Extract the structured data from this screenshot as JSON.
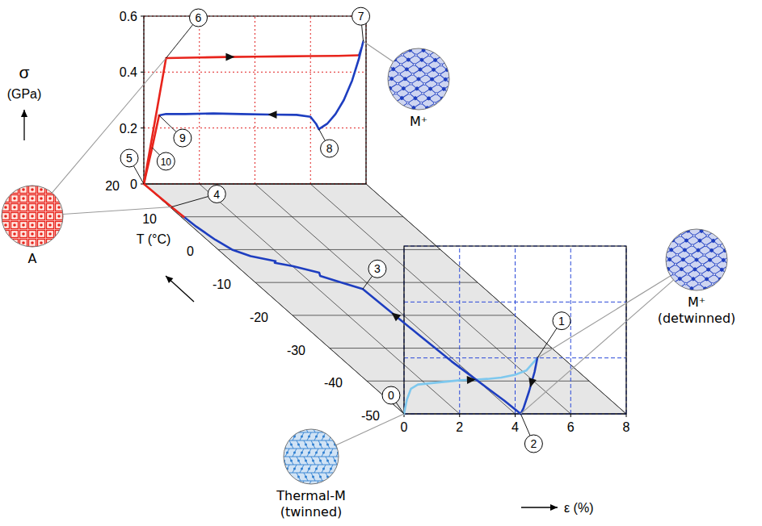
{
  "chart_data": {
    "type": "line3d",
    "xlabel": "ε (%)",
    "ylabel": [
      "σ",
      "(GPa)"
    ],
    "zlabel": "T (°C)",
    "xlim": [
      0,
      8
    ],
    "xticks": [
      0,
      2,
      4,
      6,
      8
    ],
    "ylim": [
      0,
      0.6
    ],
    "yticks": [
      0,
      0.2,
      0.4,
      0.6
    ],
    "zlim": [
      -50,
      20
    ],
    "zticks": [
      20,
      10,
      0,
      -10,
      -20,
      -30,
      -40,
      -50
    ],
    "grid": true,
    "series": [
      {
        "type": "line",
        "color": "#7ec8ee",
        "x": [
          0,
          0.1,
          0.25,
          0.5,
          1,
          1.5,
          2,
          2.5,
          3,
          3.5,
          4,
          4.4,
          4.8
        ],
        "values": [
          0,
          0.05,
          0.09,
          0.105,
          0.11,
          0.115,
          0.12,
          0.122,
          0.125,
          0.13,
          0.14,
          0.155,
          0.2
        ],
        "z": [
          -50,
          -50,
          -50,
          -50,
          -50,
          -50,
          -50,
          -50,
          -50,
          -50,
          -50,
          -50,
          -50
        ]
      },
      {
        "type": "line",
        "color": "#1e3ec0",
        "x": [
          4.8,
          4.7,
          4.5,
          4.3,
          4.2
        ],
        "values": [
          0.2,
          0.15,
          0.08,
          0.02,
          0
        ],
        "z": [
          -50,
          -50,
          -50,
          -50,
          -50
        ]
      },
      {
        "type": "line",
        "color": "#1e3ec0",
        "x": [
          4.2,
          4.15,
          4.05,
          3.95,
          3.85,
          3.75,
          3.6,
          3.1,
          2.6,
          2.7,
          2,
          1.5,
          1.6,
          0.9,
          0.5,
          0.3,
          0.15,
          0.1
        ],
        "values": [
          0,
          0,
          0,
          0,
          0,
          0,
          0,
          0,
          0,
          0,
          0,
          0,
          0,
          0,
          0,
          0,
          0,
          0
        ],
        "z": [
          -50,
          -46,
          -42,
          -38,
          -34,
          -26,
          -12,
          -10,
          -8,
          -7,
          -5,
          -4,
          -3.5,
          -2,
          0,
          3,
          7,
          10
        ]
      },
      {
        "type": "line",
        "color": "#e8241c",
        "x": [
          0.1,
          0.06,
          0.03,
          0
        ],
        "values": [
          0,
          0,
          0,
          0
        ],
        "z": [
          10,
          13,
          16,
          20
        ]
      },
      {
        "type": "line",
        "color": "#e8241c",
        "x": [
          0,
          0.8,
          2,
          3,
          4,
          5,
          6,
          7,
          7.75
        ],
        "values": [
          0,
          0.45,
          0.452,
          0.454,
          0.455,
          0.456,
          0.457,
          0.458,
          0.46
        ],
        "z": [
          20,
          20,
          20,
          20,
          20,
          20,
          20,
          20,
          20
        ]
      },
      {
        "type": "line",
        "color": "#1e3ec0",
        "x": [
          7.75,
          7.85,
          7.9,
          7.75,
          7.5,
          7.2,
          6.9,
          6.6,
          6.3,
          6.2,
          6,
          5.5,
          4.5,
          3.5,
          2.5,
          1.5,
          0.8,
          0.55
        ],
        "values": [
          0.46,
          0.49,
          0.51,
          0.45,
          0.37,
          0.3,
          0.25,
          0.215,
          0.196,
          0.215,
          0.24,
          0.247,
          0.248,
          0.25,
          0.252,
          0.25,
          0.25,
          0.245
        ],
        "z": [
          20,
          20,
          20,
          20,
          20,
          20,
          20,
          20,
          20,
          20,
          20,
          20,
          20,
          20,
          20,
          20,
          20,
          20
        ]
      },
      {
        "type": "line",
        "color": "#e8241c",
        "x": [
          0.55,
          0.3,
          0
        ],
        "values": [
          0.245,
          0.13,
          0
        ],
        "z": [
          20,
          20,
          20
        ]
      }
    ],
    "states": [
      {
        "label": "0",
        "x": 0,
        "value": 0,
        "z": -50
      },
      {
        "label": "1",
        "x": 4.8,
        "value": 0.2,
        "z": -50
      },
      {
        "label": "2",
        "x": 4.2,
        "value": 0,
        "z": -50
      },
      {
        "label": "3",
        "x": 3.6,
        "value": 0,
        "z": -12
      },
      {
        "label": "4",
        "x": 0.06,
        "value": 0,
        "z": 13
      },
      {
        "label": "5",
        "x": 0,
        "value": 0,
        "z": 20
      },
      {
        "label": "6",
        "x": 0.8,
        "value": 0.45,
        "z": 20
      },
      {
        "label": "7",
        "x": 7.9,
        "value": 0.51,
        "z": 20
      },
      {
        "label": "8",
        "x": 6.3,
        "value": 0.196,
        "z": 20
      },
      {
        "label": "9",
        "x": 0.55,
        "value": 0.245,
        "z": 20
      },
      {
        "label": "10",
        "x": 0.3,
        "value": 0.13,
        "z": 20
      }
    ],
    "insets": [
      {
        "type": "austenite",
        "color": "#e8241c",
        "label": [
          "A"
        ]
      },
      {
        "type": "detwinned",
        "color": "#1e3ec0",
        "label": [
          "M⁺"
        ]
      },
      {
        "type": "detwinned",
        "color": "#1e3ec0",
        "label": [
          "M⁺",
          "(detwinned)"
        ]
      },
      {
        "type": "twinned",
        "color": "#2f7fd0",
        "label": [
          "Thermal-M",
          "(twinned)"
        ]
      }
    ]
  }
}
